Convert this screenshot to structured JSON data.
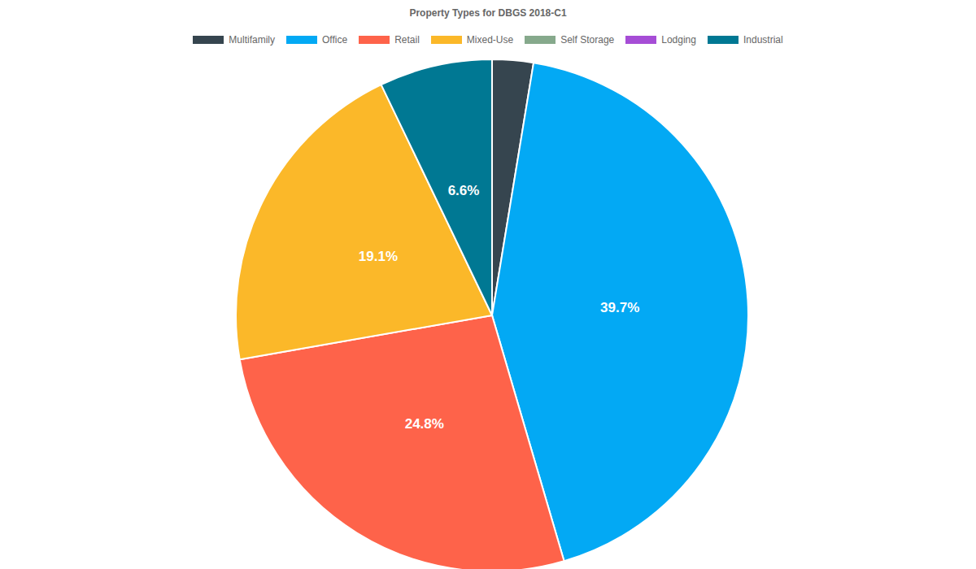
{
  "chart_data": {
    "type": "pie",
    "title": "Property Types for DBGS 2018-C1",
    "categories": [
      "Multifamily",
      "Office",
      "Retail",
      "Mixed-Use",
      "Self Storage",
      "Lodging",
      "Industrial"
    ],
    "values": [
      2.4,
      39.7,
      24.8,
      19.1,
      0,
      0,
      6.6
    ],
    "value_labels": [
      null,
      "39.7%",
      "24.8%",
      "19.1%",
      null,
      null,
      "6.6%"
    ],
    "colors": [
      "#36454f",
      "#03a9f4",
      "#fe634a",
      "#fbb829",
      "#86a98c",
      "#a64dd6",
      "#007893"
    ],
    "data_labels": true,
    "legend": "top"
  }
}
